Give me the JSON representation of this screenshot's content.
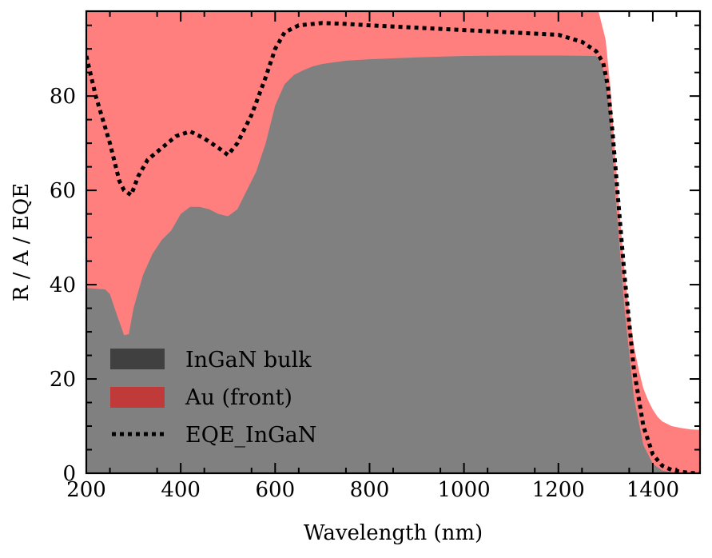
{
  "chart_data": {
    "type": "area",
    "xlabel": "Wavelength (nm)",
    "ylabel": "R / A / EQE",
    "xlim": [
      200,
      1500
    ],
    "ylim": [
      0,
      98
    ],
    "x_ticks": [
      200,
      400,
      600,
      800,
      1000,
      1200,
      1400
    ],
    "y_ticks": [
      0,
      20,
      40,
      60,
      80
    ],
    "x_tick_labels": [
      "200",
      "400",
      "600",
      "800",
      "1000",
      "1200",
      "1400"
    ],
    "y_tick_labels": [
      "0",
      "20",
      "40",
      "60",
      "80"
    ],
    "legend_position": "lower-left",
    "series": [
      {
        "name": "InGaN bulk",
        "kind": "stacked-area",
        "color": "#808080",
        "legend_color": "#404040",
        "x": [
          200,
          240,
          250,
          260,
          280,
          290,
          300,
          320,
          340,
          360,
          380,
          400,
          420,
          440,
          460,
          480,
          500,
          520,
          540,
          560,
          580,
          600,
          620,
          640,
          660,
          680,
          700,
          750,
          800,
          900,
          1000,
          1100,
          1200,
          1280,
          1290,
          1300,
          1310,
          1320,
          1340,
          1360,
          1380,
          1400,
          1420,
          1440,
          1460,
          1480,
          1500
        ],
        "values": [
          39.3,
          39,
          38,
          35,
          29.3,
          29.5,
          35,
          42,
          46.5,
          49.5,
          51.5,
          55,
          56.5,
          56.5,
          56,
          55,
          54.5,
          56,
          60,
          64,
          70,
          78,
          82.5,
          84.5,
          85.5,
          86.3,
          86.8,
          87.5,
          87.8,
          88.2,
          88.5,
          88.6,
          88.6,
          88.5,
          87,
          84,
          75,
          60,
          35,
          16,
          6,
          2,
          0.6,
          0.2,
          0,
          0,
          0
        ]
      },
      {
        "name": "Au (front)",
        "kind": "stacked-area",
        "color": "#ff7f7f",
        "legend_color": "#c03a3a",
        "x": [
          200,
          600,
          1200,
          1270,
          1285,
          1300,
          1310,
          1320,
          1330,
          1340,
          1350,
          1360,
          1370,
          1380,
          1390,
          1400,
          1410,
          1420,
          1440,
          1460,
          1480,
          1500
        ],
        "top": [
          100,
          100,
          100,
          100,
          98,
          92,
          82,
          68,
          55,
          43,
          34,
          27,
          22,
          18,
          15.5,
          13.5,
          12,
          11,
          10,
          9.6,
          9.3,
          9.2
        ]
      },
      {
        "name": "EQE_InGaN",
        "kind": "dotted-line",
        "color": "#000000",
        "x": [
          200,
          220,
          250,
          270,
          280,
          295,
          310,
          330,
          360,
          390,
          420,
          450,
          480,
          500,
          520,
          550,
          580,
          600,
          620,
          650,
          700,
          750,
          800,
          900,
          1000,
          1100,
          1200,
          1250,
          1280,
          1295,
          1305,
          1315,
          1325,
          1340,
          1360,
          1380,
          1400,
          1420,
          1440,
          1460,
          1480,
          1500
        ],
        "values": [
          88.5,
          80,
          70,
          62,
          60,
          59,
          63,
          66.5,
          69,
          71.5,
          72.5,
          71,
          69,
          67.5,
          70,
          76,
          84,
          90,
          93.5,
          95,
          95.5,
          95.3,
          95,
          94.5,
          94,
          93.5,
          93,
          91.5,
          89.5,
          87,
          82,
          72,
          60,
          42,
          22,
          10,
          4,
          1.6,
          0.7,
          0.3,
          0.05,
          0
        ]
      }
    ]
  }
}
